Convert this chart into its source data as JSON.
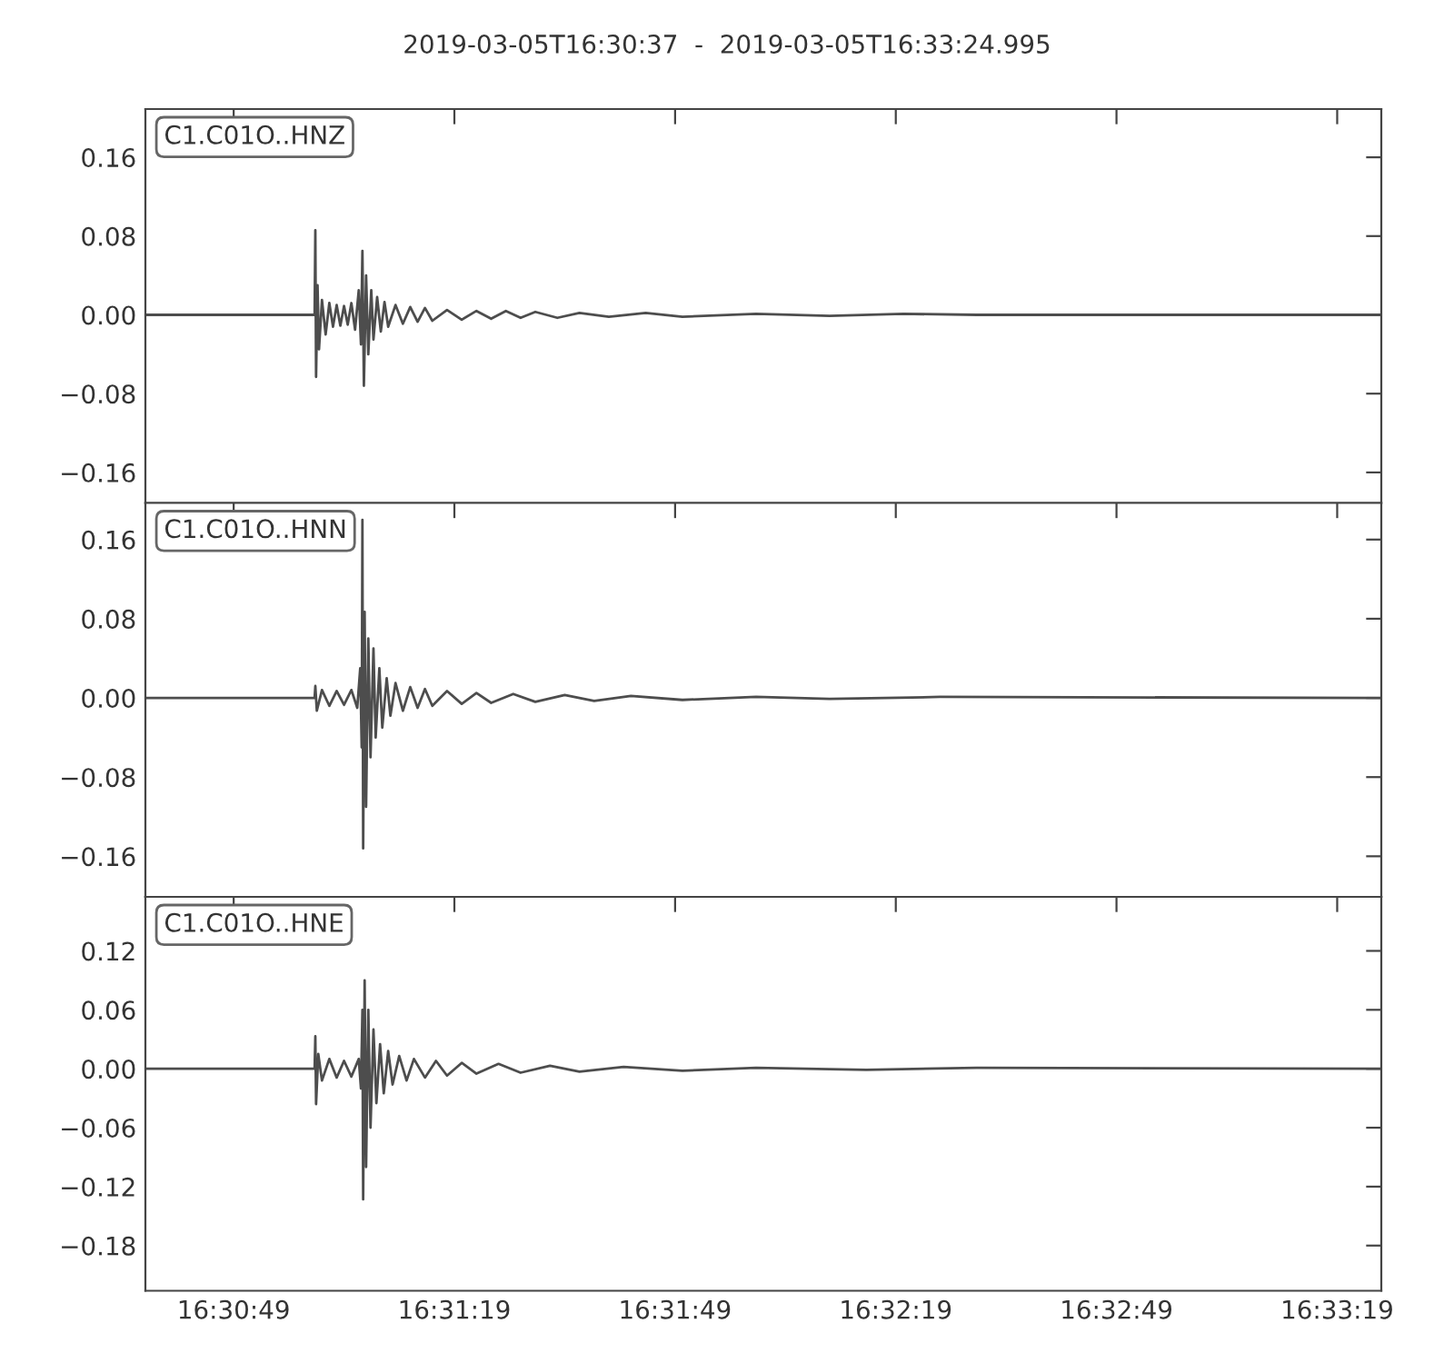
{
  "chart_data": [
    {
      "type": "line",
      "title": "2019-03-05T16:30:37  -  2019-03-05T16:33:24.995",
      "annotations": [
        "C1.C01O..HNZ"
      ],
      "series": [
        {
          "color": "#4d4d4d",
          "x": [
            "2019-03-05T16:30:37",
            "2019-03-05T16:30:55",
            "2019-03-05T16:31:00.0",
            "2019-03-05T16:31:00.1",
            "2019-03-05T16:31:00.2",
            "2019-03-05T16:31:00.4",
            "2019-03-05T16:31:00.6",
            "2019-03-05T16:31:01",
            "2019-03-05T16:31:01.5",
            "2019-03-05T16:31:02",
            "2019-03-05T16:31:02.5",
            "2019-03-05T16:31:03",
            "2019-03-05T16:31:03.5",
            "2019-03-05T16:31:04",
            "2019-03-05T16:31:04.5",
            "2019-03-05T16:31:05",
            "2019-03-05T16:31:05.5",
            "2019-03-05T16:31:06",
            "2019-03-05T16:31:06.3",
            "2019-03-05T16:31:06.5",
            "2019-03-05T16:31:06.7",
            "2019-03-05T16:31:07",
            "2019-03-05T16:31:07.3",
            "2019-03-05T16:31:07.7",
            "2019-03-05T16:31:08",
            "2019-03-05T16:31:08.5",
            "2019-03-05T16:31:09",
            "2019-03-05T16:31:09.5",
            "2019-03-05T16:31:10",
            "2019-03-05T16:31:11",
            "2019-03-05T16:31:12",
            "2019-03-05T16:31:13",
            "2019-03-05T16:31:14",
            "2019-03-05T16:31:15",
            "2019-03-05T16:31:16",
            "2019-03-05T16:31:18",
            "2019-03-05T16:31:20",
            "2019-03-05T16:31:22",
            "2019-03-05T16:31:24",
            "2019-03-05T16:31:26",
            "2019-03-05T16:31:28",
            "2019-03-05T16:31:30",
            "2019-03-05T16:31:33",
            "2019-03-05T16:31:36",
            "2019-03-05T16:31:40",
            "2019-03-05T16:31:45",
            "2019-03-05T16:31:50",
            "2019-03-05T16:32:00",
            "2019-03-05T16:32:10",
            "2019-03-05T16:32:20",
            "2019-03-05T16:32:30",
            "2019-03-05T16:33:24.995"
          ],
          "values": [
            0,
            0,
            0,
            0.086,
            -0.063,
            0.03,
            -0.035,
            0.015,
            -0.02,
            0.012,
            -0.012,
            0.01,
            -0.011,
            0.009,
            -0.01,
            0.012,
            -0.015,
            0.025,
            -0.03,
            0.065,
            -0.072,
            0.04,
            -0.04,
            0.025,
            -0.025,
            0.018,
            -0.017,
            0.013,
            -0.012,
            0.01,
            -0.009,
            0.008,
            -0.007,
            0.007,
            -0.006,
            0.005,
            -0.005,
            0.004,
            -0.004,
            0.004,
            -0.003,
            0.003,
            -0.003,
            0.002,
            -0.002,
            0.002,
            -0.002,
            0.001,
            -0.001,
            0.001,
            0,
            0
          ]
        }
      ],
      "xlim": [
        "2019-03-05T16:30:37",
        "2019-03-05T16:33:24.995"
      ],
      "xticks": [
        {
          "value": "2019-03-05T16:30:49",
          "label": null
        },
        {
          "value": "2019-03-05T16:31:19",
          "label": null
        },
        {
          "value": "2019-03-05T16:31:49",
          "label": null
        },
        {
          "value": "2019-03-05T16:32:19",
          "label": null
        },
        {
          "value": "2019-03-05T16:32:49",
          "label": null
        },
        {
          "value": "2019-03-05T16:33:19",
          "label": null
        }
      ],
      "ylim": [
        -0.191,
        0.209
      ],
      "yticks": [
        {
          "value": -0.16,
          "label": "−0.16"
        },
        {
          "value": -0.08,
          "label": "−0.08"
        },
        {
          "value": 0,
          "label": "0.00"
        },
        {
          "value": 0.08,
          "label": "0.08"
        },
        {
          "value": 0.16,
          "label": "0.16"
        }
      ],
      "tick_labels": "y",
      "grid": false
    },
    {
      "type": "line",
      "annotations": [
        "C1.C01O..HNN"
      ],
      "series": [
        {
          "color": "#4d4d4d",
          "x": [
            "2019-03-05T16:30:37",
            "2019-03-05T16:31:00.0",
            "2019-03-05T16:31:00.1",
            "2019-03-05T16:31:00.3",
            "2019-03-05T16:31:01",
            "2019-03-05T16:31:02",
            "2019-03-05T16:31:03",
            "2019-03-05T16:31:04",
            "2019-03-05T16:31:05",
            "2019-03-05T16:31:05.8",
            "2019-03-05T16:31:06.2",
            "2019-03-05T16:31:06.4",
            "2019-03-05T16:31:06.5",
            "2019-03-05T16:31:06.6",
            "2019-03-05T16:31:06.8",
            "2019-03-05T16:31:07",
            "2019-03-05T16:31:07.3",
            "2019-03-05T16:31:07.6",
            "2019-03-05T16:31:08",
            "2019-03-05T16:31:08.3",
            "2019-03-05T16:31:08.8",
            "2019-03-05T16:31:09.2",
            "2019-03-05T16:31:09.8",
            "2019-03-05T16:31:10.3",
            "2019-03-05T16:31:11",
            "2019-03-05T16:31:12",
            "2019-03-05T16:31:13",
            "2019-03-05T16:31:14",
            "2019-03-05T16:31:15",
            "2019-03-05T16:31:16",
            "2019-03-05T16:31:18",
            "2019-03-05T16:31:20",
            "2019-03-05T16:31:22",
            "2019-03-05T16:31:24",
            "2019-03-05T16:31:27",
            "2019-03-05T16:31:30",
            "2019-03-05T16:31:34",
            "2019-03-05T16:31:38",
            "2019-03-05T16:31:43",
            "2019-03-05T16:31:50",
            "2019-03-05T16:32:00",
            "2019-03-05T16:32:10",
            "2019-03-05T16:32:25",
            "2019-03-05T16:33:24.995"
          ],
          "values": [
            0,
            0,
            0.012,
            -0.013,
            0.008,
            -0.008,
            0.007,
            -0.007,
            0.008,
            -0.01,
            0.03,
            -0.05,
            0.18,
            -0.152,
            0.087,
            -0.11,
            0.06,
            -0.06,
            0.05,
            -0.04,
            0.03,
            -0.03,
            0.02,
            -0.018,
            0.015,
            -0.013,
            0.011,
            -0.01,
            0.009,
            -0.008,
            0.007,
            -0.006,
            0.005,
            -0.005,
            0.004,
            -0.004,
            0.003,
            -0.003,
            0.002,
            -0.002,
            0.001,
            -0.001,
            0.001,
            0
          ]
        }
      ],
      "xlim": [
        "2019-03-05T16:30:37",
        "2019-03-05T16:33:24.995"
      ],
      "xticks": [
        {
          "value": "2019-03-05T16:30:49",
          "label": null
        },
        {
          "value": "2019-03-05T16:31:19",
          "label": null
        },
        {
          "value": "2019-03-05T16:31:49",
          "label": null
        },
        {
          "value": "2019-03-05T16:32:19",
          "label": null
        },
        {
          "value": "2019-03-05T16:32:49",
          "label": null
        },
        {
          "value": "2019-03-05T16:33:19",
          "label": null
        }
      ],
      "ylim": [
        -0.201,
        0.197
      ],
      "yticks": [
        {
          "value": -0.16,
          "label": "−0.16"
        },
        {
          "value": -0.08,
          "label": "−0.08"
        },
        {
          "value": 0,
          "label": "0.00"
        },
        {
          "value": 0.08,
          "label": "0.08"
        },
        {
          "value": 0.16,
          "label": "0.16"
        }
      ],
      "tick_labels": "y",
      "grid": false
    },
    {
      "type": "line",
      "annotations": [
        "C1.C01O..HNE"
      ],
      "series": [
        {
          "color": "#4d4d4d",
          "x": [
            "2019-03-05T16:30:37",
            "2019-03-05T16:31:00.0",
            "2019-03-05T16:31:00.1",
            "2019-03-05T16:31:00.2",
            "2019-03-05T16:31:00.5",
            "2019-03-05T16:31:01",
            "2019-03-05T16:31:02",
            "2019-03-05T16:31:03",
            "2019-03-05T16:31:04",
            "2019-03-05T16:31:05",
            "2019-03-05T16:31:06",
            "2019-03-05T16:31:06.3",
            "2019-03-05T16:31:06.5",
            "2019-03-05T16:31:06.6",
            "2019-03-05T16:31:06.8",
            "2019-03-05T16:31:07",
            "2019-03-05T16:31:07.3",
            "2019-03-05T16:31:07.6",
            "2019-03-05T16:31:08",
            "2019-03-05T16:31:08.4",
            "2019-03-05T16:31:08.9",
            "2019-03-05T16:31:09.4",
            "2019-03-05T16:31:10",
            "2019-03-05T16:31:10.6",
            "2019-03-05T16:31:11.5",
            "2019-03-05T16:31:12.5",
            "2019-03-05T16:31:13.5",
            "2019-03-05T16:31:15",
            "2019-03-05T16:31:16.5",
            "2019-03-05T16:31:18",
            "2019-03-05T16:31:20",
            "2019-03-05T16:31:22",
            "2019-03-05T16:31:25",
            "2019-03-05T16:31:28",
            "2019-03-05T16:31:32",
            "2019-03-05T16:31:36",
            "2019-03-05T16:31:42",
            "2019-03-05T16:31:50",
            "2019-03-05T16:32:00",
            "2019-03-05T16:32:15",
            "2019-03-05T16:32:30",
            "2019-03-05T16:33:24.995"
          ],
          "values": [
            0,
            0,
            0.033,
            -0.036,
            0.015,
            -0.012,
            0.01,
            -0.009,
            0.008,
            -0.008,
            0.01,
            -0.02,
            0.06,
            -0.133,
            0.09,
            -0.1,
            0.06,
            -0.06,
            0.04,
            -0.035,
            0.025,
            -0.025,
            0.018,
            -0.016,
            0.013,
            -0.012,
            0.01,
            -0.009,
            0.008,
            -0.007,
            0.006,
            -0.005,
            0.005,
            -0.004,
            0.003,
            -0.003,
            0.002,
            -0.002,
            0.001,
            -0.001,
            0.001,
            0
          ]
        }
      ],
      "xlim": [
        "2019-03-05T16:30:37",
        "2019-03-05T16:33:24.995"
      ],
      "xticks": [
        {
          "value": "2019-03-05T16:30:49",
          "label": "16:30:49"
        },
        {
          "value": "2019-03-05T16:31:19",
          "label": "16:31:19"
        },
        {
          "value": "2019-03-05T16:31:49",
          "label": "16:31:49"
        },
        {
          "value": "2019-03-05T16:32:19",
          "label": "16:32:19"
        },
        {
          "value": "2019-03-05T16:32:49",
          "label": "16:32:49"
        },
        {
          "value": "2019-03-05T16:33:19",
          "label": "16:33:19"
        }
      ],
      "ylim": [
        -0.226,
        0.175
      ],
      "yticks": [
        {
          "value": -0.18,
          "label": "−0.18"
        },
        {
          "value": -0.12,
          "label": "−0.12"
        },
        {
          "value": -0.06,
          "label": "−0.06"
        },
        {
          "value": 0,
          "label": "0.00"
        },
        {
          "value": 0.06,
          "label": "0.06"
        },
        {
          "value": 0.12,
          "label": "0.12"
        }
      ],
      "grid": false
    }
  ]
}
